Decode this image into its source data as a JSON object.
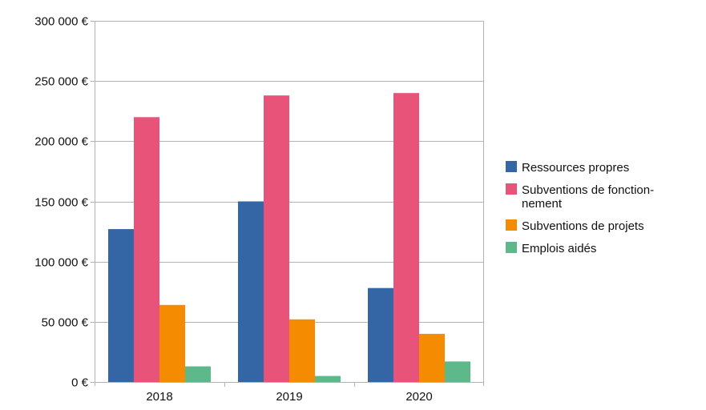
{
  "chart_data": {
    "type": "bar",
    "title": "",
    "xlabel": "",
    "ylabel": "",
    "categories": [
      "2018",
      "2019",
      "2020"
    ],
    "series": [
      {
        "name": "Ressources propres",
        "color": "#3465a4",
        "values": [
          127000,
          150000,
          78000
        ]
      },
      {
        "name": "Subventions de fonction-\nnement",
        "color": "#e8537a",
        "values": [
          220000,
          238000,
          240000
        ]
      },
      {
        "name": "Subventions de projets",
        "color": "#f58b00",
        "values": [
          64000,
          52000,
          40000
        ]
      },
      {
        "name": "Emplois aidés",
        "color": "#5eb98a",
        "values": [
          13000,
          5000,
          17000
        ]
      }
    ],
    "ylim": [
      0,
      300000
    ],
    "yticks": [
      0,
      50000,
      100000,
      150000,
      200000,
      250000,
      300000
    ],
    "ytick_labels": [
      "0 €",
      "50 000 €",
      "100 000 €",
      "150 000 €",
      "200 000 €",
      "250 000 €",
      "300 000 €"
    ],
    "grid": true,
    "legend_position": "right"
  }
}
